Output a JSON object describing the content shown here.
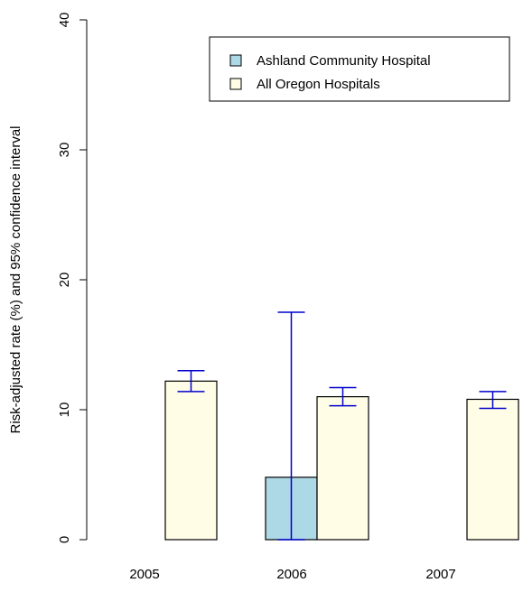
{
  "chart_data": {
    "type": "bar",
    "title": "",
    "xlabel": "",
    "ylabel": "Risk-adjusted rate (%) and 95% confidence interval",
    "ylim": [
      0,
      40
    ],
    "yticks": [
      0,
      10,
      20,
      30,
      40
    ],
    "categories": [
      "2005",
      "2006",
      "2007"
    ],
    "series": [
      {
        "name": "Ashland Community Hospital",
        "color": "#add8e6",
        "values": [
          null,
          4.8,
          null
        ],
        "ci_low": [
          null,
          0,
          null
        ],
        "ci_high": [
          null,
          17.5,
          null
        ]
      },
      {
        "name": "All Oregon Hospitals",
        "color": "#fffde6",
        "values": [
          12.2,
          11.0,
          10.8
        ],
        "ci_low": [
          11.4,
          10.3,
          10.1
        ],
        "ci_high": [
          13.0,
          11.7,
          11.4
        ]
      }
    ],
    "error_bar_color": "#0000cd",
    "bar_edge_color": "#000000",
    "legend_position": "top-right",
    "grid": false
  }
}
